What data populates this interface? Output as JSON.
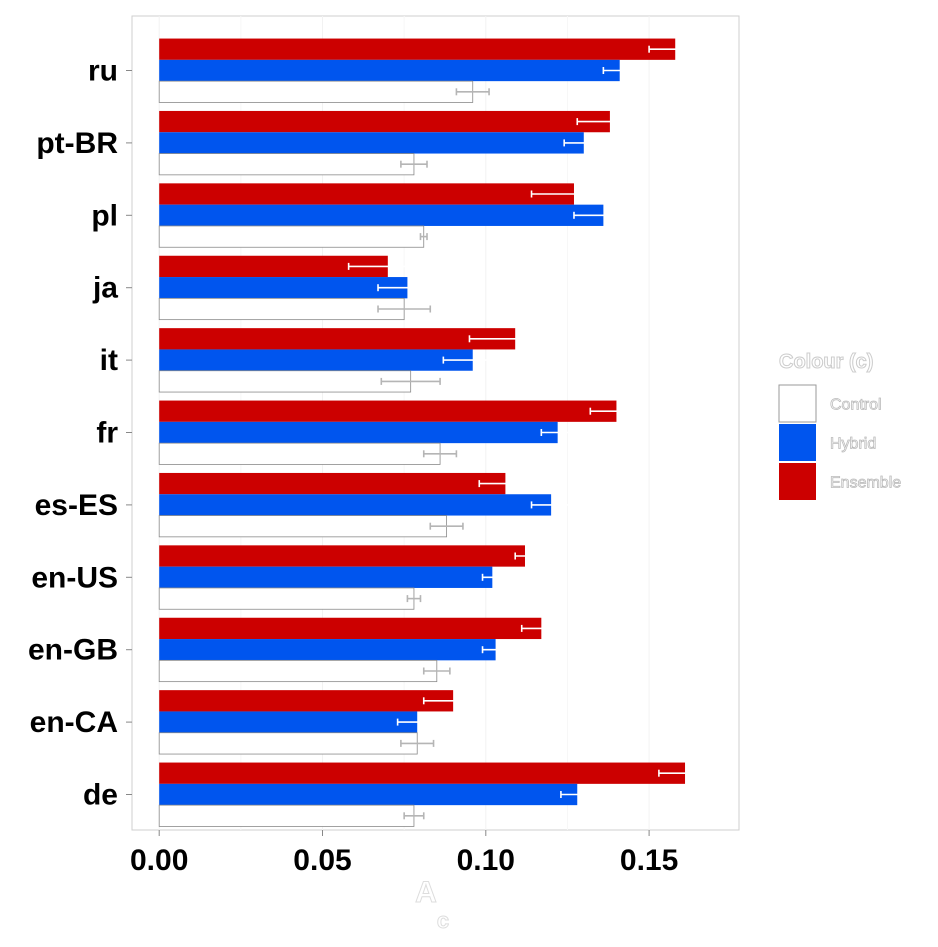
{
  "chart_data": {
    "type": "bar",
    "orientation": "horizontal",
    "categories": [
      "ru",
      "pt-BR",
      "pl",
      "ja",
      "it",
      "fr",
      "es-ES",
      "en-US",
      "en-GB",
      "en-CA",
      "de"
    ],
    "xlabel": "A",
    "xlabel_sub": "c",
    "ylabel": "",
    "xlim": [
      -0.008,
      0.178
    ],
    "x_ticks": [
      "0.00",
      "0.05",
      "0.10",
      "0.15"
    ],
    "x_tick_values": [
      0.0,
      0.05,
      0.1,
      0.15
    ],
    "grid": true,
    "legend": {
      "title": "Colour (c)",
      "position": "right",
      "entries": [
        "Control",
        "Hybrid",
        "Ensemble"
      ]
    },
    "series": [
      {
        "name": "Control",
        "color": "#ffffff",
        "values": [
          0.096,
          0.078,
          0.081,
          0.075,
          0.077,
          0.086,
          0.088,
          0.078,
          0.085,
          0.079,
          0.078
        ],
        "errors": [
          0.005,
          0.004,
          0.001,
          0.008,
          0.009,
          0.005,
          0.005,
          0.002,
          0.004,
          0.005,
          0.003
        ]
      },
      {
        "name": "Hybrid",
        "color": "#0055ee",
        "values": [
          0.141,
          0.13,
          0.136,
          0.076,
          0.096,
          0.122,
          0.12,
          0.102,
          0.103,
          0.079,
          0.128
        ],
        "errors": [
          0.005,
          0.006,
          0.009,
          0.009,
          0.009,
          0.005,
          0.006,
          0.003,
          0.004,
          0.006,
          0.005
        ]
      },
      {
        "name": "Ensemble",
        "color": "#cc0000",
        "values": [
          0.158,
          0.138,
          0.127,
          0.07,
          0.109,
          0.14,
          0.106,
          0.112,
          0.117,
          0.09,
          0.161
        ],
        "errors": [
          0.008,
          0.01,
          0.013,
          0.012,
          0.014,
          0.008,
          0.008,
          0.003,
          0.006,
          0.009,
          0.008
        ]
      }
    ]
  }
}
